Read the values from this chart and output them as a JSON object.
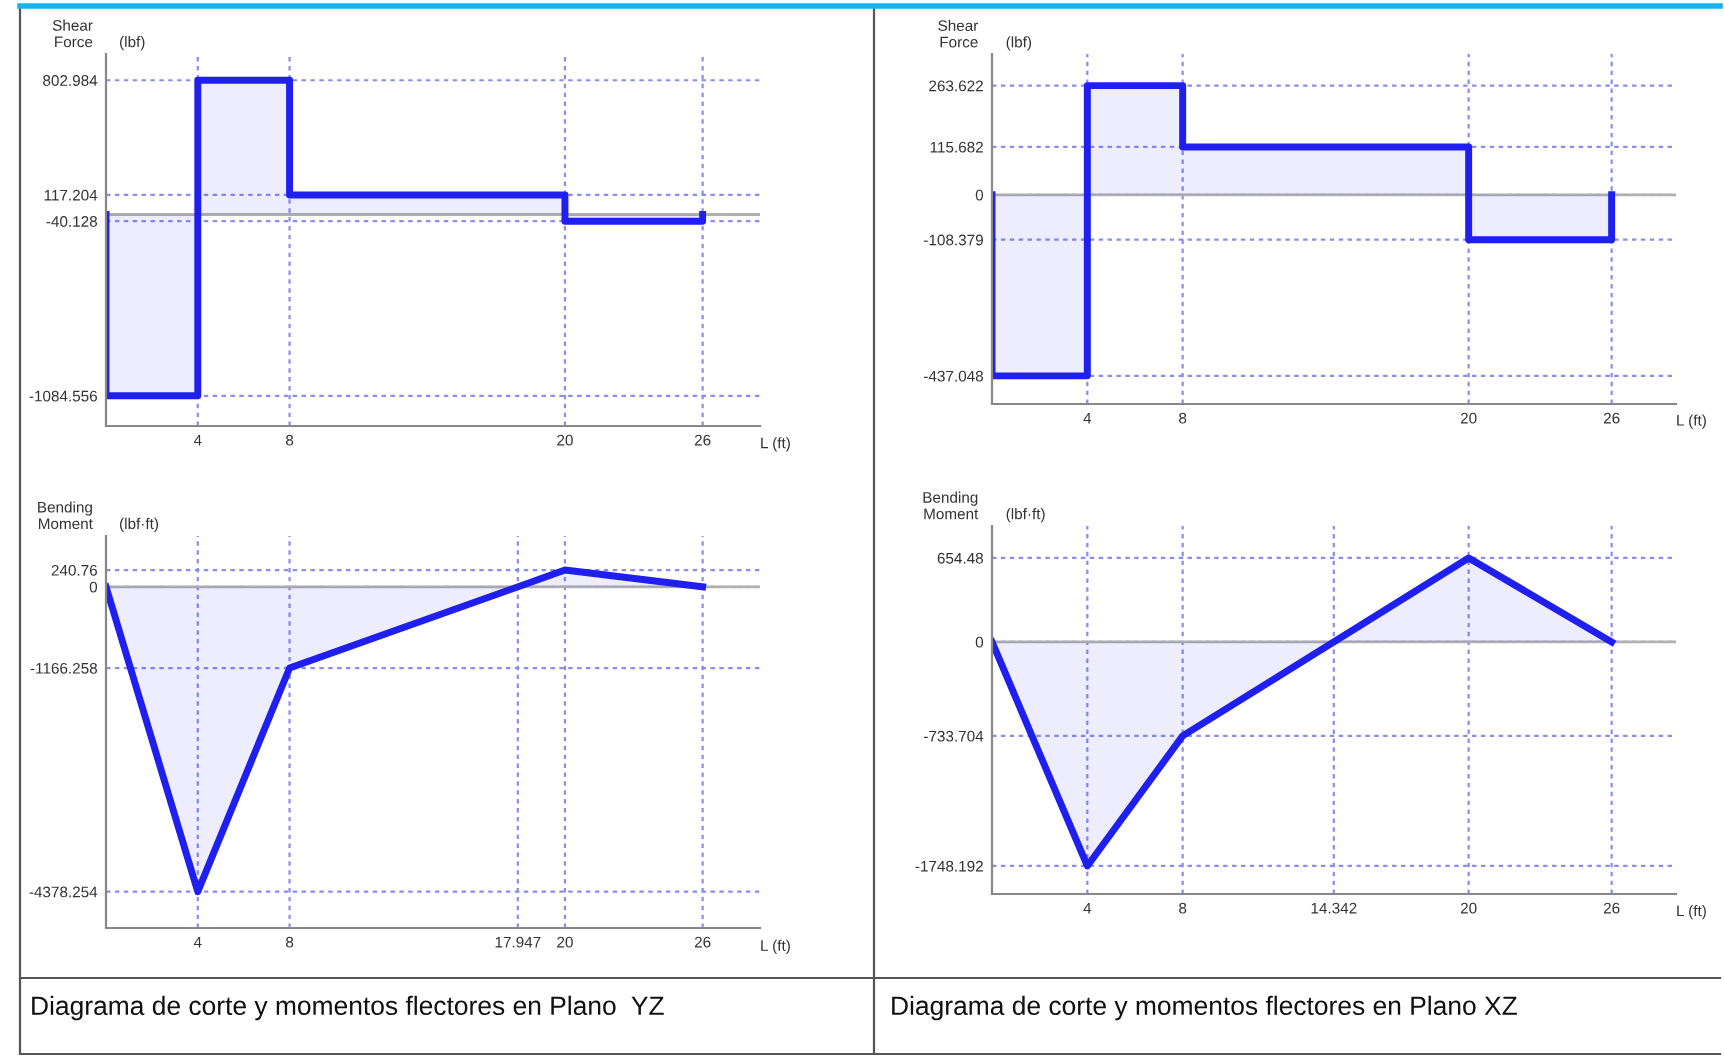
{
  "chart_data": [
    {
      "type": "area",
      "ylabel": "Shear\nForce",
      "xlabel": "L (ft)",
      "annotations": [
        "(lbf)"
      ],
      "xlim": [
        0,
        28.5
      ],
      "ylim": [
        -1265,
        960
      ],
      "xticks": [
        4,
        8,
        20,
        26
      ],
      "yticks": [
        802.984,
        117.204,
        -40.128,
        -1084.556
      ],
      "grid": true,
      "ref_lines": [
        {
          "axis": "y",
          "value": 0,
          "color": "#b0b0b0"
        }
      ],
      "series": [
        {
          "color": "#1f1fef",
          "x": [
            0,
            0,
            4,
            4,
            8,
            8,
            20,
            20,
            26,
            26
          ],
          "values": [
            0,
            -1084.556,
            -1084.556,
            802.984,
            802.984,
            117.204,
            117.204,
            -40.128,
            -40.128,
            0
          ]
        }
      ]
    },
    {
      "type": "area",
      "ylabel": "Shear\nForce",
      "xlabel": "L (ft)",
      "annotations": [
        "(lbf)"
      ],
      "xlim": [
        0,
        28.7
      ],
      "ylim": [
        -505,
        340
      ],
      "xticks": [
        4,
        8,
        20,
        26
      ],
      "yticks": [
        263.622,
        115.682,
        0,
        -108.379,
        -437.048
      ],
      "grid": true,
      "ref_lines": [
        {
          "axis": "y",
          "value": 0,
          "color": "#b0b0b0"
        }
      ],
      "series": [
        {
          "color": "#1f1fef",
          "x": [
            0,
            0,
            4,
            4,
            8,
            8,
            20,
            20,
            26,
            26
          ],
          "values": [
            0,
            -437.048,
            -437.048,
            263.622,
            263.622,
            115.682,
            115.682,
            -108.379,
            -108.379,
            0
          ]
        }
      ]
    },
    {
      "type": "area",
      "ylabel": "Bending\nMoment",
      "xlabel": "L (ft)",
      "annotations": [
        "(lbf·ft)",
        "Diagrama de corte y momentos flectores en Plano  YZ"
      ],
      "xlim": [
        0,
        28.5
      ],
      "ylim": [
        -4900,
        730
      ],
      "xticks": [
        4,
        8,
        17.947,
        20,
        26
      ],
      "yticks": [
        240.76,
        0,
        -1166.258,
        -4378.254
      ],
      "grid": true,
      "ref_lines": [
        {
          "axis": "y",
          "value": 0,
          "color": "#b0b0b0"
        }
      ],
      "series": [
        {
          "color": "#1f1fef",
          "x": [
            0,
            4,
            8,
            20,
            26
          ],
          "values": [
            0,
            -4378.254,
            -1166.258,
            240.76,
            0
          ]
        }
      ]
    },
    {
      "type": "area",
      "ylabel": "Bending\nMoment",
      "xlabel": "L (ft)",
      "annotations": [
        "(lbf·ft)",
        "Diagrama de corte y momentos flectores en Plano XZ"
      ],
      "xlim": [
        0,
        28.7
      ],
      "ylim": [
        -1967,
        904
      ],
      "xticks": [
        4,
        8,
        14.342,
        20,
        26
      ],
      "yticks": [
        654.48,
        0,
        -733.704,
        -1748.192
      ],
      "grid": true,
      "ref_lines": [
        {
          "axis": "y",
          "value": 0,
          "color": "#b0b0b0"
        }
      ],
      "series": [
        {
          "color": "#1f1fef",
          "x": [
            0,
            4,
            8,
            20,
            26
          ],
          "values": [
            0,
            -1748.192,
            -733.704,
            654.48,
            0
          ]
        }
      ]
    }
  ]
}
